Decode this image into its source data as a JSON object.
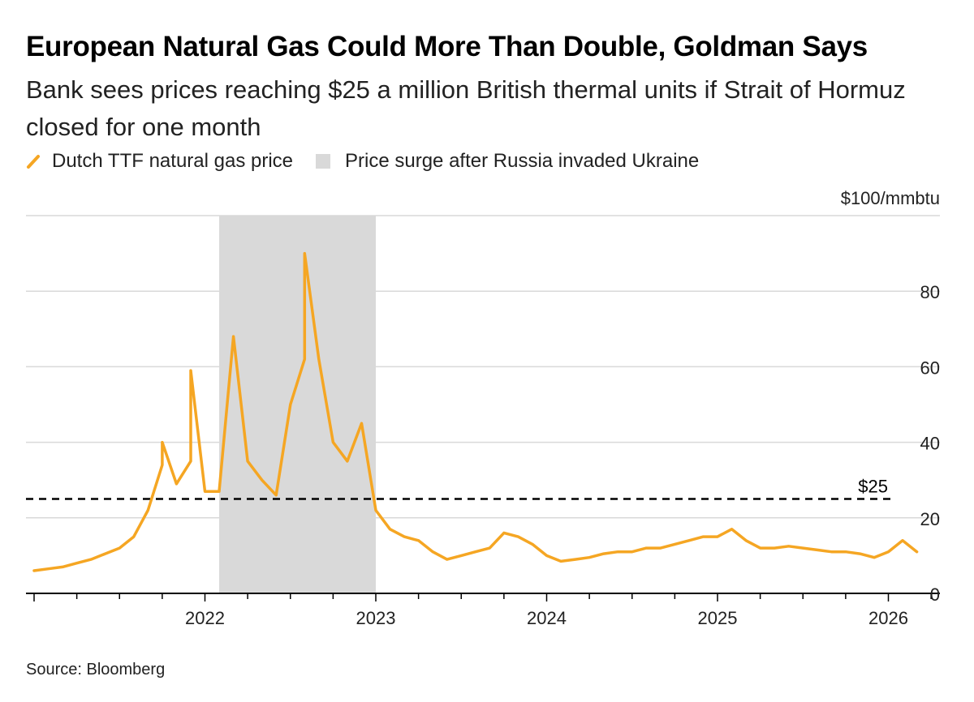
{
  "title": "European Natural Gas Could More Than Double, Goldman Says",
  "subtitle": "Bank sees prices reaching $25 a million British thermal units if Strait of Hormuz closed for one month",
  "legend": {
    "series_label": "Dutch TTF natural gas price",
    "shade_label": "Price surge after Russia invaded Ukraine"
  },
  "source": "Source: Bloomberg",
  "colors": {
    "line": "#f5a623",
    "shade": "#d9d9d9",
    "grid": "#d9d9d9",
    "axis": "#000000"
  },
  "chart_data": {
    "type": "line",
    "unit_label": "$100/mmbtu",
    "ylim": [
      0,
      100
    ],
    "yticks": [
      0,
      20,
      40,
      60,
      80
    ],
    "x_tick_labels": [
      "2022",
      "2023",
      "2024",
      "2025",
      "2026"
    ],
    "xlim": [
      "2021-01",
      "2026-05"
    ],
    "grid": true,
    "legend_position": "top-left",
    "shaded_region": {
      "label": "Price surge after Russia invaded Ukraine",
      "x": [
        "2022-02",
        "2023-01"
      ]
    },
    "reference_line": {
      "label": "$25",
      "value": 25,
      "style": "dashed"
    },
    "series": [
      {
        "name": "Dutch TTF natural gas price",
        "points": [
          [
            "2021-01",
            6
          ],
          [
            "2021-02",
            6.5
          ],
          [
            "2021-03",
            7
          ],
          [
            "2021-04",
            8
          ],
          [
            "2021-05",
            9
          ],
          [
            "2021-06",
            10.5
          ],
          [
            "2021-07",
            12
          ],
          [
            "2021-08",
            15
          ],
          [
            "2021-09",
            22
          ],
          [
            "2021-10",
            34
          ],
          [
            "2021-10",
            40
          ],
          [
            "2021-11",
            29
          ],
          [
            "2021-12",
            35
          ],
          [
            "2021-12",
            59
          ],
          [
            "2022-01",
            27
          ],
          [
            "2022-02",
            27
          ],
          [
            "2022-03",
            68
          ],
          [
            "2022-04",
            35
          ],
          [
            "2022-05",
            30
          ],
          [
            "2022-06",
            26
          ],
          [
            "2022-07",
            50
          ],
          [
            "2022-08",
            62
          ],
          [
            "2022-08",
            90
          ],
          [
            "2022-09",
            62
          ],
          [
            "2022-10",
            40
          ],
          [
            "2022-11",
            35
          ],
          [
            "2022-12",
            45
          ],
          [
            "2023-01",
            22
          ],
          [
            "2023-02",
            17
          ],
          [
            "2023-03",
            15
          ],
          [
            "2023-04",
            14
          ],
          [
            "2023-05",
            11
          ],
          [
            "2023-06",
            9
          ],
          [
            "2023-07",
            10
          ],
          [
            "2023-08",
            11
          ],
          [
            "2023-09",
            12
          ],
          [
            "2023-10",
            16
          ],
          [
            "2023-11",
            15
          ],
          [
            "2023-12",
            13
          ],
          [
            "2024-01",
            10
          ],
          [
            "2024-02",
            8.5
          ],
          [
            "2024-03",
            9
          ],
          [
            "2024-04",
            9.5
          ],
          [
            "2024-05",
            10.5
          ],
          [
            "2024-06",
            11
          ],
          [
            "2024-07",
            11
          ],
          [
            "2024-08",
            12
          ],
          [
            "2024-09",
            12
          ],
          [
            "2024-10",
            13
          ],
          [
            "2024-11",
            14
          ],
          [
            "2024-12",
            15
          ],
          [
            "2025-01",
            15
          ],
          [
            "2025-02",
            17
          ],
          [
            "2025-03",
            14
          ],
          [
            "2025-04",
            12
          ],
          [
            "2025-05",
            12
          ],
          [
            "2025-06",
            12.5
          ],
          [
            "2025-07",
            12
          ],
          [
            "2025-08",
            11.5
          ],
          [
            "2025-09",
            11
          ],
          [
            "2025-10",
            11
          ],
          [
            "2025-11",
            10.5
          ],
          [
            "2025-12",
            9.5
          ],
          [
            "2026-01",
            11
          ],
          [
            "2026-02",
            14
          ],
          [
            "2026-03",
            11
          ]
        ]
      }
    ]
  }
}
